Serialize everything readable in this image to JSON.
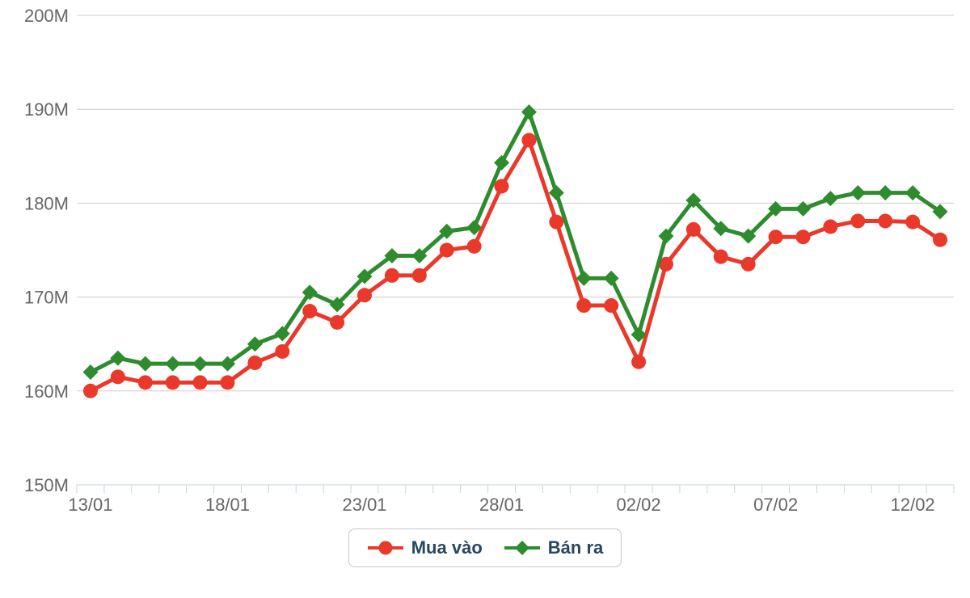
{
  "chart_data": {
    "type": "line",
    "x": [
      "13/01",
      "14/01",
      "15/01",
      "16/01",
      "17/01",
      "18/01",
      "19/01",
      "20/01",
      "21/01",
      "22/01",
      "23/01",
      "24/01",
      "25/01",
      "26/01",
      "27/01",
      "28/01",
      "29/01",
      "30/01",
      "31/01",
      "01/02",
      "02/02",
      "03/02",
      "04/02",
      "05/02",
      "06/02",
      "07/02",
      "08/02",
      "09/02",
      "10/02",
      "11/02",
      "12/02",
      "13/02"
    ],
    "series": [
      {
        "name": "Mua vào",
        "color": "#e8392b",
        "marker": "circle",
        "values": [
          160.0,
          161.5,
          160.9,
          160.9,
          160.9,
          160.9,
          163.0,
          164.2,
          168.5,
          167.3,
          170.2,
          172.3,
          172.3,
          175.0,
          175.4,
          181.8,
          186.7,
          178.0,
          169.1,
          169.1,
          163.1,
          173.5,
          177.2,
          174.3,
          173.5,
          176.4,
          176.4,
          177.5,
          178.1,
          178.1,
          178.0,
          176.1
        ]
      },
      {
        "name": "Bán ra",
        "color": "#2e8b2e",
        "marker": "diamond",
        "values": [
          162.0,
          163.5,
          162.9,
          162.9,
          162.9,
          162.9,
          165.0,
          166.1,
          170.5,
          169.2,
          172.2,
          174.4,
          174.4,
          177.0,
          177.4,
          184.3,
          189.7,
          181.1,
          172.0,
          172.0,
          166.0,
          176.5,
          180.3,
          177.3,
          176.5,
          179.4,
          179.4,
          180.5,
          181.1,
          181.1,
          181.1,
          179.1
        ]
      }
    ],
    "title": "",
    "xlabel": "",
    "ylabel": "",
    "ylim": [
      150,
      200
    ],
    "ytick_step": 10,
    "ytick_labels": [
      "150M",
      "160M",
      "170M",
      "180M",
      "190M",
      "200M"
    ],
    "xtick_labels_shown": [
      "13/01",
      "18/01",
      "23/01",
      "28/01",
      "02/02",
      "07/02",
      "12/02"
    ],
    "xtick_label_every": 5,
    "grid": "horizontal",
    "legend_position": "bottom",
    "colors": {
      "grid_color": "#cccccc",
      "axis_color": "#c6d3de",
      "label_color": "#666666",
      "legend_text_color": "#294660",
      "legend_border_color": "#c9c9c9",
      "background": "#ffffff"
    }
  }
}
